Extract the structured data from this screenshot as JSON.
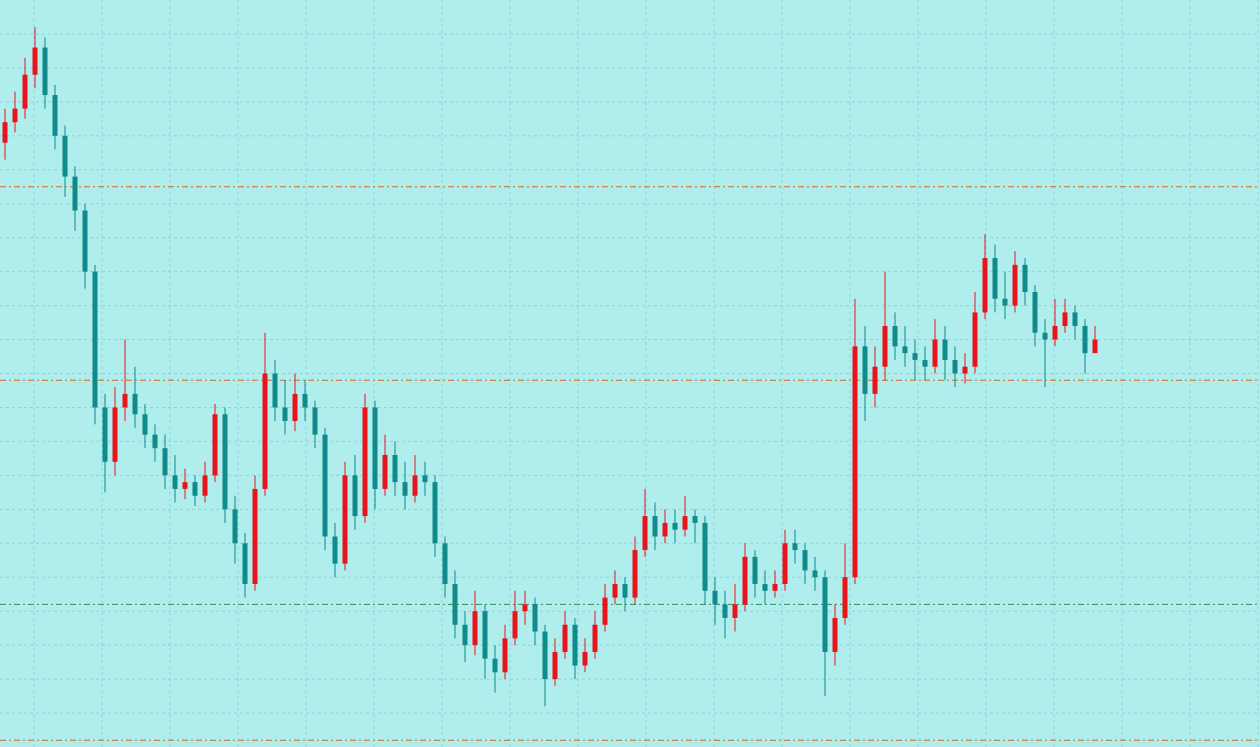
{
  "chart_data": {
    "type": "candlestick",
    "background": "#b0eeee",
    "up_color": "#e8141c",
    "down_color": "#108a8a",
    "grid": true,
    "grid_color": "#8fd4d4",
    "xlim": [
      0,
      126
    ],
    "ylim": [
      0,
      220
    ],
    "xticks": [
      3.4,
      10.2,
      17,
      23.8,
      30.6,
      37.4,
      44.2,
      51,
      57.8,
      64.6,
      71.4,
      78.2,
      85,
      91.8,
      98.6,
      105.4,
      112.2,
      119,
      125.8
    ],
    "yticks": [
      10,
      20,
      30,
      40,
      50,
      60,
      70,
      80,
      90,
      100,
      110,
      120,
      130,
      140,
      150,
      160,
      170,
      180,
      190,
      200,
      210
    ],
    "levels": [
      {
        "value": 165,
        "color": "#d2691e"
      },
      {
        "value": 108,
        "color": "#d2691e"
      },
      {
        "value": 42,
        "color": "#2e8b57"
      },
      {
        "value": 2,
        "color": "#d2691e"
      }
    ],
    "candles": [
      [
        178,
        188,
        173,
        184
      ],
      [
        184,
        193,
        181,
        188
      ],
      [
        188,
        203,
        185,
        198
      ],
      [
        198,
        212,
        194,
        206
      ],
      [
        206,
        209,
        188,
        192
      ],
      [
        192,
        195,
        176,
        180
      ],
      [
        180,
        183,
        162,
        168
      ],
      [
        168,
        171,
        152,
        158
      ],
      [
        158,
        160,
        135,
        140
      ],
      [
        140,
        142,
        95,
        100
      ],
      [
        100,
        104,
        75,
        84
      ],
      [
        84,
        106,
        80,
        100
      ],
      [
        100,
        120,
        96,
        104
      ],
      [
        104,
        112,
        94,
        98
      ],
      [
        98,
        101,
        88,
        92
      ],
      [
        92,
        95,
        84,
        88
      ],
      [
        88,
        92,
        76,
        80
      ],
      [
        80,
        86,
        72,
        76
      ],
      [
        76,
        82,
        73,
        78
      ],
      [
        78,
        80,
        71,
        74
      ],
      [
        74,
        84,
        72,
        80
      ],
      [
        80,
        101,
        78,
        98
      ],
      [
        98,
        100,
        66,
        70
      ],
      [
        70,
        74,
        54,
        60
      ],
      [
        60,
        63,
        44,
        48
      ],
      [
        48,
        80,
        46,
        76
      ],
      [
        76,
        122,
        74,
        110
      ],
      [
        110,
        114,
        96,
        100
      ],
      [
        100,
        108,
        92,
        96
      ],
      [
        96,
        110,
        93,
        104
      ],
      [
        104,
        108,
        96,
        100
      ],
      [
        100,
        102,
        88,
        92
      ],
      [
        92,
        94,
        58,
        62
      ],
      [
        62,
        66,
        50,
        54
      ],
      [
        54,
        84,
        52,
        80
      ],
      [
        80,
        86,
        64,
        68
      ],
      [
        68,
        104,
        66,
        100
      ],
      [
        100,
        102,
        70,
        76
      ],
      [
        76,
        92,
        74,
        86
      ],
      [
        86,
        90,
        74,
        78
      ],
      [
        78,
        84,
        70,
        74
      ],
      [
        74,
        86,
        72,
        80
      ],
      [
        80,
        84,
        74,
        78
      ],
      [
        78,
        80,
        56,
        60
      ],
      [
        60,
        62,
        44,
        48
      ],
      [
        48,
        52,
        32,
        36
      ],
      [
        36,
        40,
        25,
        30
      ],
      [
        30,
        46,
        27,
        40
      ],
      [
        40,
        42,
        20,
        26
      ],
      [
        26,
        30,
        16,
        22
      ],
      [
        22,
        36,
        20,
        32
      ],
      [
        32,
        46,
        30,
        40
      ],
      [
        40,
        46,
        36,
        42
      ],
      [
        42,
        44,
        30,
        34
      ],
      [
        34,
        36,
        12,
        20
      ],
      [
        20,
        32,
        18,
        28
      ],
      [
        28,
        40,
        26,
        36
      ],
      [
        36,
        38,
        20,
        24
      ],
      [
        24,
        32,
        22,
        28
      ],
      [
        28,
        40,
        26,
        36
      ],
      [
        36,
        48,
        34,
        44
      ],
      [
        44,
        52,
        42,
        48
      ],
      [
        48,
        50,
        40,
        44
      ],
      [
        44,
        62,
        42,
        58
      ],
      [
        58,
        76,
        56,
        68
      ],
      [
        68,
        72,
        58,
        62
      ],
      [
        62,
        70,
        60,
        66
      ],
      [
        66,
        70,
        60,
        64
      ],
      [
        64,
        74,
        62,
        68
      ],
      [
        68,
        70,
        60,
        66
      ],
      [
        66,
        68,
        42,
        46
      ],
      [
        46,
        50,
        36,
        42
      ],
      [
        42,
        46,
        32,
        38
      ],
      [
        38,
        48,
        34,
        42
      ],
      [
        42,
        60,
        40,
        56
      ],
      [
        56,
        58,
        44,
        48
      ],
      [
        48,
        52,
        42,
        46
      ],
      [
        46,
        52,
        44,
        48
      ],
      [
        48,
        64,
        46,
        60
      ],
      [
        60,
        64,
        54,
        58
      ],
      [
        58,
        60,
        48,
        52
      ],
      [
        52,
        56,
        46,
        50
      ],
      [
        50,
        52,
        15,
        28
      ],
      [
        28,
        42,
        24,
        38
      ],
      [
        38,
        60,
        36,
        50
      ],
      [
        50,
        132,
        48,
        118
      ],
      [
        118,
        124,
        96,
        104
      ],
      [
        104,
        118,
        100,
        112
      ],
      [
        112,
        140,
        108,
        124
      ],
      [
        124,
        128,
        114,
        118
      ],
      [
        118,
        124,
        112,
        116
      ],
      [
        116,
        120,
        108,
        114
      ],
      [
        114,
        118,
        108,
        112
      ],
      [
        112,
        126,
        110,
        120
      ],
      [
        120,
        124,
        108,
        114
      ],
      [
        114,
        118,
        106,
        110
      ],
      [
        110,
        116,
        107,
        112
      ],
      [
        112,
        134,
        110,
        128
      ],
      [
        128,
        151,
        126,
        144
      ],
      [
        144,
        148,
        128,
        132
      ],
      [
        132,
        140,
        126,
        130
      ],
      [
        130,
        146,
        128,
        142
      ],
      [
        142,
        144,
        130,
        134
      ],
      [
        134,
        136,
        118,
        122
      ],
      [
        122,
        126,
        106,
        120
      ],
      [
        120,
        132,
        118,
        124
      ],
      [
        124,
        132,
        122,
        128
      ],
      [
        128,
        130,
        120,
        124
      ],
      [
        124,
        126,
        110,
        116
      ],
      [
        116,
        124,
        116,
        120
      ]
    ]
  }
}
